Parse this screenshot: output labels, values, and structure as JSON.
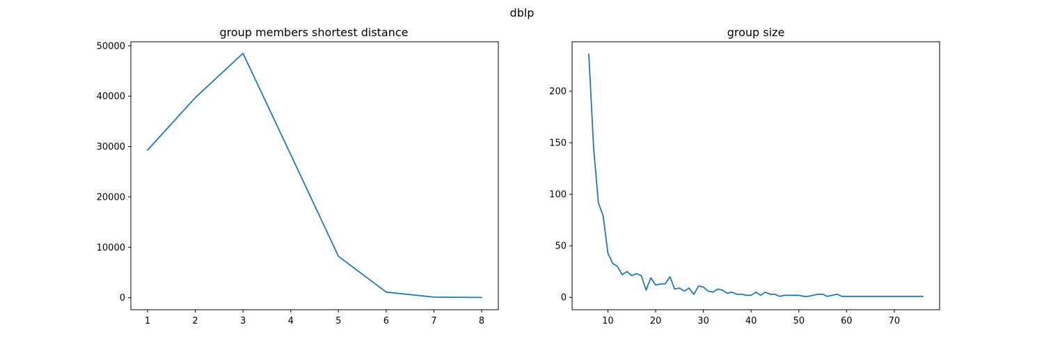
{
  "figure": {
    "suptitle": "dblp"
  },
  "chart_data": [
    {
      "type": "line",
      "title": "group members shortest distance",
      "xlabel": "",
      "ylabel": "",
      "xlim": [
        0.65,
        8.35
      ],
      "ylim": [
        -2400,
        50800
      ],
      "xticks": [
        1,
        2,
        3,
        4,
        5,
        6,
        7,
        8
      ],
      "yticks": [
        0,
        10000,
        20000,
        30000,
        40000,
        50000
      ],
      "grid": false,
      "color": "#1f77b4",
      "x": [
        1,
        2,
        3,
        4,
        5,
        6,
        7,
        8
      ],
      "y": [
        29300,
        39700,
        48500,
        28400,
        8200,
        1100,
        100,
        30
      ]
    },
    {
      "type": "line",
      "title": "group size",
      "xlabel": "",
      "ylabel": "",
      "xlim": [
        2.5,
        79.5
      ],
      "ylim": [
        -12,
        248
      ],
      "xticks": [
        10,
        20,
        30,
        40,
        50,
        60,
        70
      ],
      "yticks": [
        0,
        50,
        100,
        150,
        200
      ],
      "grid": false,
      "color": "#1f77b4",
      "x": [
        6,
        7,
        8,
        9,
        10,
        11,
        12,
        13,
        14,
        15,
        16,
        17,
        18,
        19,
        20,
        21,
        22,
        23,
        24,
        25,
        26,
        27,
        28,
        29,
        30,
        31,
        32,
        33,
        34,
        35,
        36,
        37,
        38,
        39,
        40,
        41,
        42,
        43,
        44,
        45,
        46,
        47,
        48,
        49,
        50,
        51,
        52,
        53,
        54,
        55,
        56,
        57,
        58,
        59,
        60,
        61,
        62,
        63,
        64,
        65,
        66,
        67,
        68,
        69,
        70,
        71,
        72,
        73,
        74,
        75,
        76
      ],
      "y": [
        236,
        145,
        92,
        79,
        43,
        33,
        30,
        22,
        25,
        21,
        23,
        21,
        7,
        19,
        12,
        13,
        13,
        20,
        8,
        9,
        6,
        9,
        3,
        11,
        10,
        6,
        5,
        8,
        7,
        4,
        5,
        3,
        3,
        2,
        2,
        5,
        2,
        5,
        3,
        3,
        1,
        2,
        2,
        2,
        2,
        1,
        1,
        2,
        3,
        3,
        1,
        2,
        3,
        1,
        1,
        1,
        1,
        1,
        1,
        1,
        1,
        1,
        1,
        1,
        1,
        1,
        1,
        1,
        1,
        1,
        1
      ]
    }
  ]
}
